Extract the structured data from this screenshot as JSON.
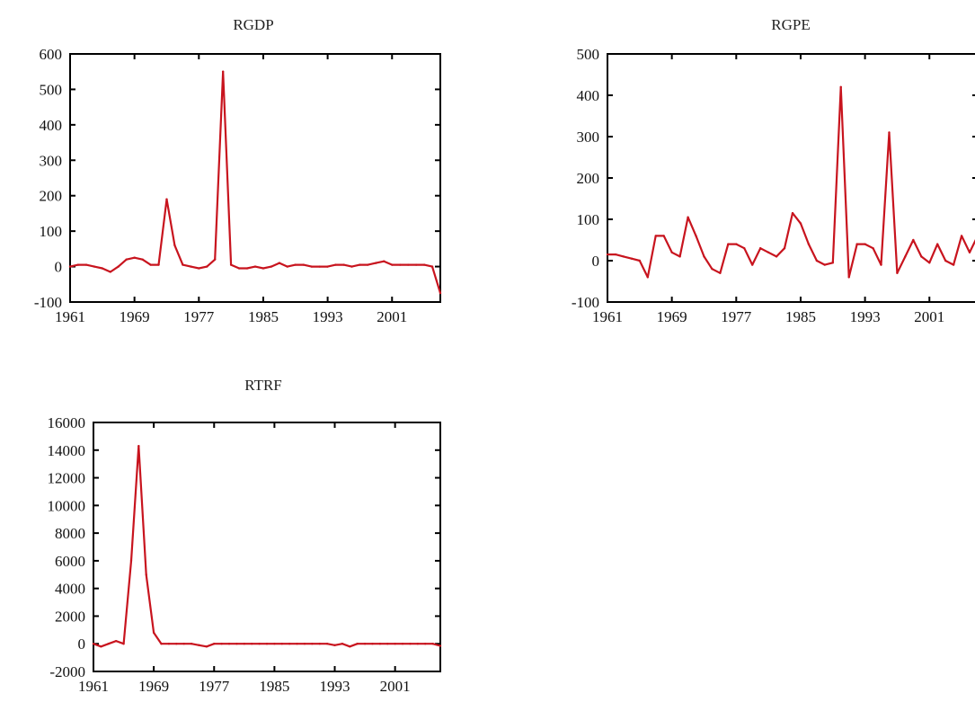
{
  "chart_data": [
    {
      "type": "line",
      "title": "RGDP",
      "xlabel": "",
      "ylabel": "",
      "xlim": [
        1961,
        2007
      ],
      "ylim": [
        -100,
        600
      ],
      "xticks": [
        1961,
        1969,
        1977,
        1985,
        1993,
        2001
      ],
      "yticks": [
        -100,
        0,
        100,
        200,
        300,
        400,
        500,
        600
      ],
      "xtick_labels": [
        "1961",
        "1969",
        "1977",
        "1985",
        "1993",
        "2001"
      ],
      "ytick_labels": [
        "-100",
        "0",
        "100",
        "200",
        "300",
        "400",
        "500",
        "600"
      ],
      "grid": false,
      "series_color": "#c8141e",
      "x": [
        1961,
        1962,
        1963,
        1964,
        1965,
        1966,
        1967,
        1968,
        1969,
        1970,
        1971,
        1972,
        1973,
        1974,
        1975,
        1976,
        1977,
        1978,
        1979,
        1980,
        1981,
        1982,
        1983,
        1984,
        1985,
        1986,
        1987,
        1988,
        1989,
        1990,
        1991,
        1992,
        1993,
        1994,
        1995,
        1996,
        1997,
        1998,
        1999,
        2000,
        2001,
        2002,
        2003,
        2004,
        2005,
        2006,
        2007
      ],
      "values": [
        0,
        5,
        5,
        0,
        -5,
        -15,
        0,
        20,
        25,
        20,
        5,
        5,
        190,
        60,
        5,
        0,
        -5,
        0,
        20,
        550,
        5,
        -5,
        -5,
        0,
        -5,
        0,
        10,
        0,
        5,
        5,
        0,
        0,
        0,
        5,
        5,
        0,
        5,
        5,
        10,
        15,
        5,
        5,
        5,
        5,
        5,
        0,
        -75
      ]
    },
    {
      "type": "line",
      "title": "RGPE",
      "xlabel": "",
      "ylabel": "",
      "xlim": [
        1961,
        2007
      ],
      "ylim": [
        -100,
        500
      ],
      "xticks": [
        1961,
        1969,
        1977,
        1985,
        1993,
        2001
      ],
      "yticks": [
        -100,
        0,
        100,
        200,
        300,
        400,
        500
      ],
      "xtick_labels": [
        "1961",
        "1969",
        "1977",
        "1985",
        "1993",
        "2001"
      ],
      "ytick_labels": [
        "-100",
        "0",
        "100",
        "200",
        "300",
        "400",
        "500"
      ],
      "grid": false,
      "series_color": "#c8141e",
      "x": [
        1961,
        1962,
        1963,
        1964,
        1965,
        1966,
        1967,
        1968,
        1969,
        1970,
        1971,
        1972,
        1973,
        1974,
        1975,
        1976,
        1977,
        1978,
        1979,
        1980,
        1981,
        1982,
        1983,
        1984,
        1985,
        1986,
        1987,
        1988,
        1989,
        1990,
        1991,
        1992,
        1993,
        1994,
        1995,
        1996,
        1997,
        1998,
        1999,
        2000,
        2001,
        2002,
        2003,
        2004,
        2005,
        2006,
        2007
      ],
      "values": [
        15,
        15,
        10,
        5,
        0,
        -40,
        60,
        60,
        20,
        10,
        105,
        60,
        10,
        -20,
        -30,
        40,
        40,
        30,
        -10,
        30,
        20,
        10,
        30,
        115,
        90,
        40,
        0,
        -10,
        -5,
        420,
        -40,
        40,
        40,
        30,
        -10,
        310,
        -30,
        10,
        50,
        10,
        -5,
        40,
        0,
        -10,
        60,
        20,
        60
      ]
    },
    {
      "type": "line",
      "title": "RTRF",
      "xlabel": "",
      "ylabel": "",
      "xlim": [
        1961,
        2007
      ],
      "ylim": [
        -2000,
        16000
      ],
      "xticks": [
        1961,
        1969,
        1977,
        1985,
        1993,
        2001
      ],
      "yticks": [
        -2000,
        0,
        2000,
        4000,
        6000,
        8000,
        10000,
        12000,
        14000,
        16000
      ],
      "xtick_labels": [
        "1961",
        "1969",
        "1977",
        "1985",
        "1993",
        "2001"
      ],
      "ytick_labels": [
        "-2000",
        "0",
        "2000",
        "4000",
        "6000",
        "8000",
        "10000",
        "12000",
        "14000",
        "16000"
      ],
      "grid": false,
      "series_color": "#c8141e",
      "x": [
        1961,
        1962,
        1963,
        1964,
        1965,
        1966,
        1967,
        1968,
        1969,
        1970,
        1971,
        1972,
        1973,
        1974,
        1975,
        1976,
        1977,
        1978,
        1979,
        1980,
        1981,
        1982,
        1983,
        1984,
        1985,
        1986,
        1987,
        1988,
        1989,
        1990,
        1991,
        1992,
        1993,
        1994,
        1995,
        1996,
        1997,
        1998,
        1999,
        2000,
        2001,
        2002,
        2003,
        2004,
        2005,
        2006,
        2007
      ],
      "values": [
        0,
        -200,
        0,
        200,
        0,
        6000,
        14300,
        5000,
        800,
        0,
        0,
        0,
        0,
        0,
        -100,
        -200,
        0,
        0,
        0,
        0,
        0,
        0,
        0,
        0,
        0,
        0,
        0,
        0,
        0,
        0,
        0,
        0,
        -100,
        0,
        -200,
        0,
        0,
        0,
        0,
        0,
        0,
        0,
        0,
        0,
        0,
        0,
        -150
      ]
    }
  ]
}
